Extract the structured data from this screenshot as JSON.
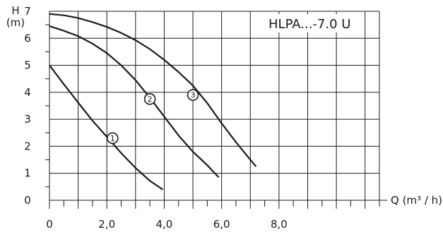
{
  "chart_data": {
    "type": "line",
    "title": "",
    "model_label": "HLPA...-7.0 U",
    "ylabel_line1": "H",
    "ylabel_line2": "(m)",
    "xlabel": "Q (m³ / h)",
    "xlim": [
      0,
      11.5
    ],
    "ylim": [
      0,
      7
    ],
    "x_ticks": [
      "0",
      "2,0",
      "4,0",
      "6,0",
      "8,0"
    ],
    "x_tick_values": [
      0,
      2,
      4,
      6,
      8
    ],
    "y_ticks": [
      "0",
      "1",
      "2",
      "3",
      "4",
      "5",
      "6",
      "7"
    ],
    "y_tick_values": [
      0,
      1,
      2,
      3,
      4,
      5,
      6,
      7
    ],
    "grid": true,
    "series": [
      {
        "name": "1",
        "marker_x": 2.2,
        "marker_y": 2.3,
        "x": [
          0,
          0.5,
          1.0,
          1.5,
          2.0,
          2.5,
          3.0,
          3.5,
          3.95
        ],
        "y": [
          5.0,
          4.3,
          3.62,
          2.95,
          2.35,
          1.75,
          1.2,
          0.72,
          0.4
        ]
      },
      {
        "name": "2",
        "marker_x": 3.5,
        "marker_y": 3.75,
        "x": [
          0,
          0.5,
          1.0,
          1.5,
          2.0,
          2.5,
          3.0,
          3.5,
          4.0,
          4.5,
          5.0,
          5.5,
          5.9
        ],
        "y": [
          6.45,
          6.28,
          6.08,
          5.8,
          5.45,
          5.0,
          4.45,
          3.8,
          3.1,
          2.4,
          1.8,
          1.3,
          0.85
        ]
      },
      {
        "name": "3",
        "marker_x": 5.0,
        "marker_y": 3.9,
        "x": [
          0,
          0.5,
          1.0,
          1.5,
          2.0,
          2.5,
          3.0,
          3.5,
          4.0,
          4.5,
          5.0,
          5.5,
          6.0,
          6.5,
          7.0,
          7.2
        ],
        "y": [
          6.9,
          6.85,
          6.75,
          6.6,
          6.42,
          6.2,
          5.93,
          5.6,
          5.2,
          4.75,
          4.25,
          3.6,
          2.85,
          2.15,
          1.5,
          1.25
        ]
      }
    ]
  }
}
